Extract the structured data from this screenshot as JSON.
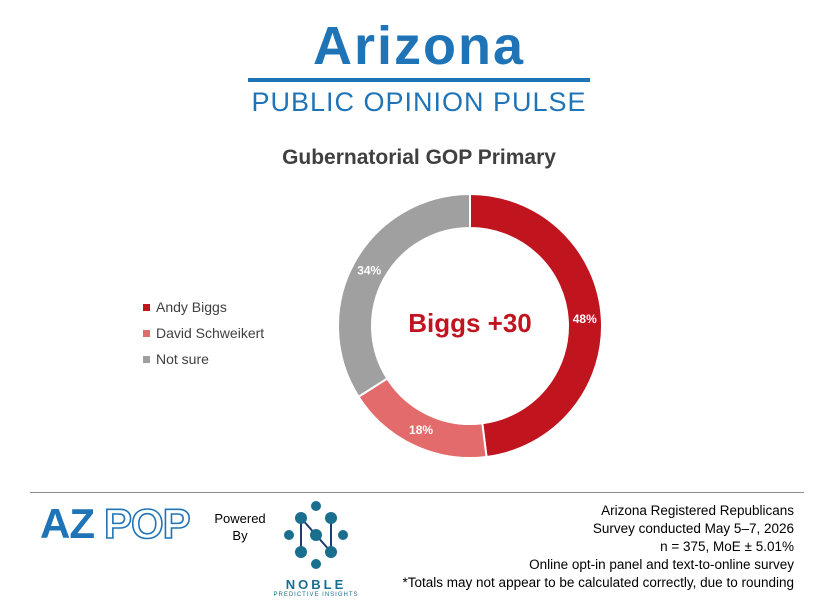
{
  "header": {
    "title": "Arizona",
    "subtitle": "PUBLIC OPINION PULSE"
  },
  "chart_data": {
    "type": "pie",
    "title": "Gubernatorial GOP Primary",
    "center_label": "Biggs +30",
    "legend_position": "left",
    "slices": [
      {
        "name": "Andy Biggs",
        "value": 48,
        "label": "48%",
        "color": "#c0141f"
      },
      {
        "name": "David Schweikert",
        "value": 18,
        "label": "18%",
        "color": "#e36b6b"
      },
      {
        "name": "Not sure",
        "value": 34,
        "label": "34%",
        "color": "#a0a0a0"
      }
    ]
  },
  "footer": {
    "logo_text": "AZPOP",
    "powered_line1": "Powered",
    "powered_line2": "By",
    "noble_name": "NOBLE",
    "noble_tagline": "PREDICTIVE INSIGHTS",
    "notes": [
      "Arizona Registered Republicans",
      "Survey conducted May 5–7, 2026",
      "n = 375, MoE ± 5.01%",
      "Online opt-in panel and text-to-online survey",
      "*Totals may not appear to be calculated correctly, due to rounding"
    ]
  }
}
